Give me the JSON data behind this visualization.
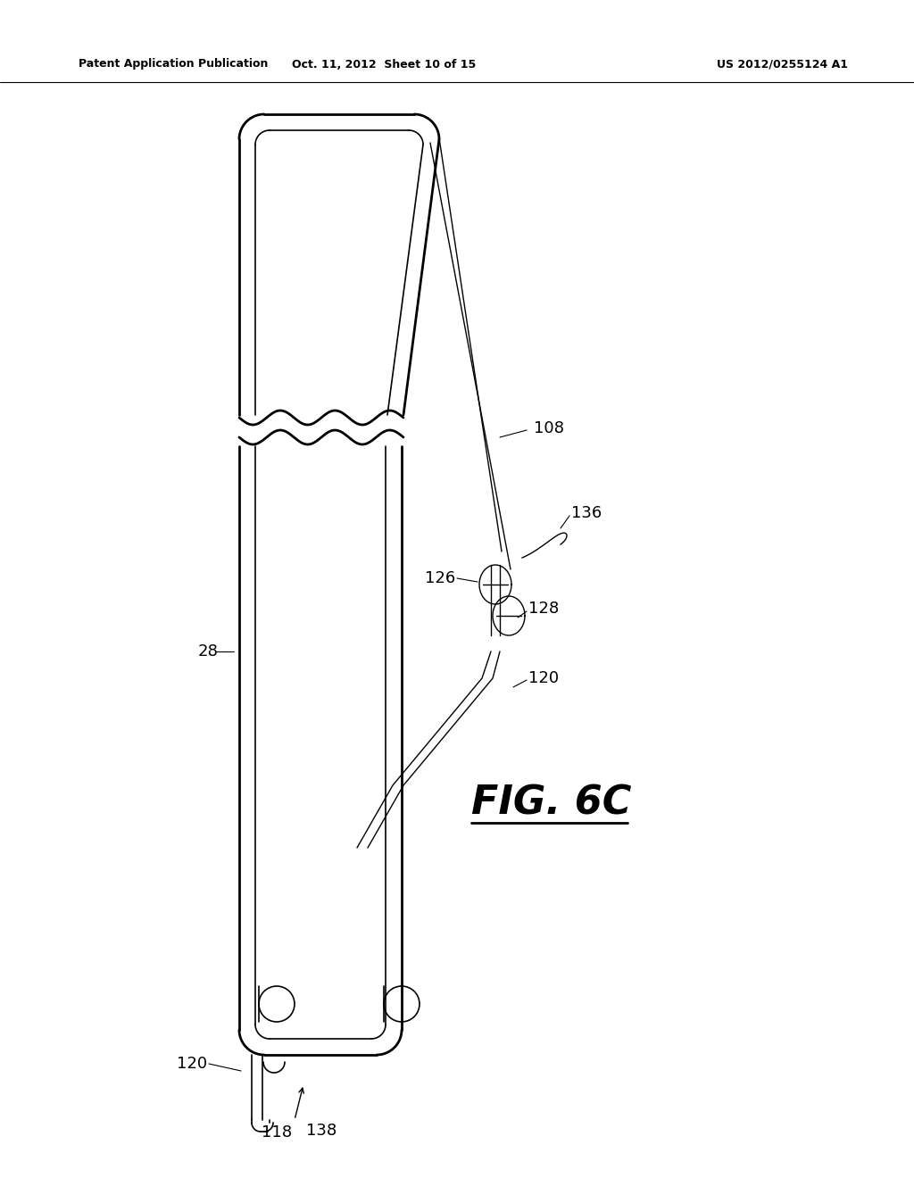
{
  "title_left": "Patent Application Publication",
  "title_mid": "Oct. 11, 2012  Sheet 10 of 15",
  "title_right": "US 2012/0255124 A1",
  "fig_label": "FIG. 6C",
  "bg_color": "#ffffff",
  "line_color": "#000000"
}
